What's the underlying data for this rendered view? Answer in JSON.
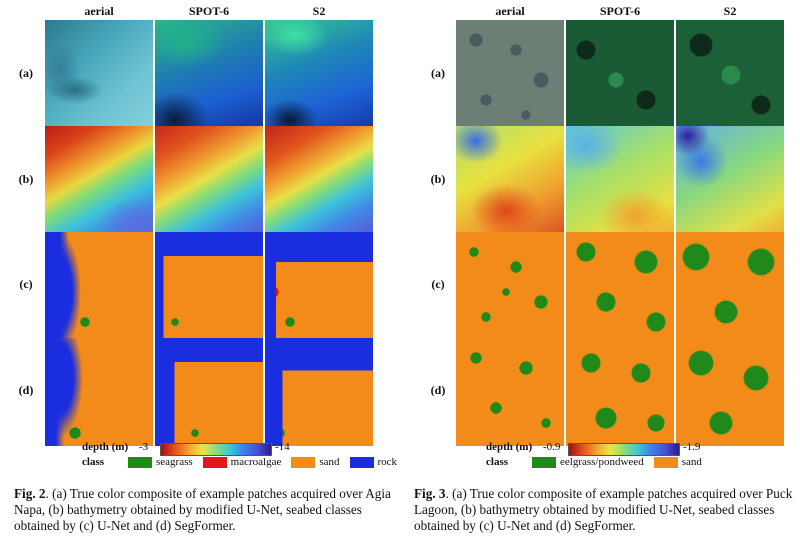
{
  "fig2": {
    "cols": [
      "aerial",
      "SPOT-6",
      "S2"
    ],
    "rows": [
      "(a)",
      "(b)",
      "(c)",
      "(d)"
    ],
    "depth_label": "depth (m)",
    "depth_min": "-3",
    "depth_max": "-14",
    "class_label": "class",
    "classes": [
      {
        "name": "seagrass",
        "color": "#1f8a1a"
      },
      {
        "name": "macroalgae",
        "color": "#e8141c"
      },
      {
        "name": "sand",
        "color": "#f28b1a"
      },
      {
        "name": "rock",
        "color": "#1a2ee0"
      }
    ],
    "caption_label": "Fig. 2",
    "caption_text": ". (a) True color composite of example patches acquired over Agia Napa, (b) bathymetry obtained by modified U-Net, seabed classes obtained by (c) U-Net and (d) SegFormer."
  },
  "fig3": {
    "cols": [
      "aerial",
      "SPOT-6",
      "S2"
    ],
    "rows": [
      "(a)",
      "(b)",
      "(c)",
      "(d)"
    ],
    "depth_label": "depth (m)",
    "depth_min": "-0.9",
    "depth_max": "-1.9",
    "class_label": "class",
    "classes": [
      {
        "name": "eelgrass/pondweed",
        "color": "#1f8a1a"
      },
      {
        "name": "sand",
        "color": "#f28b1a"
      }
    ],
    "caption_label": "Fig. 3",
    "caption_text": ". (a) True color composite of example patches acquired over Puck Lagoon, (b) bathymetry obtained by modified U-Net, seabed classes obtained by (c) U-Net and (d) SegFormer."
  }
}
